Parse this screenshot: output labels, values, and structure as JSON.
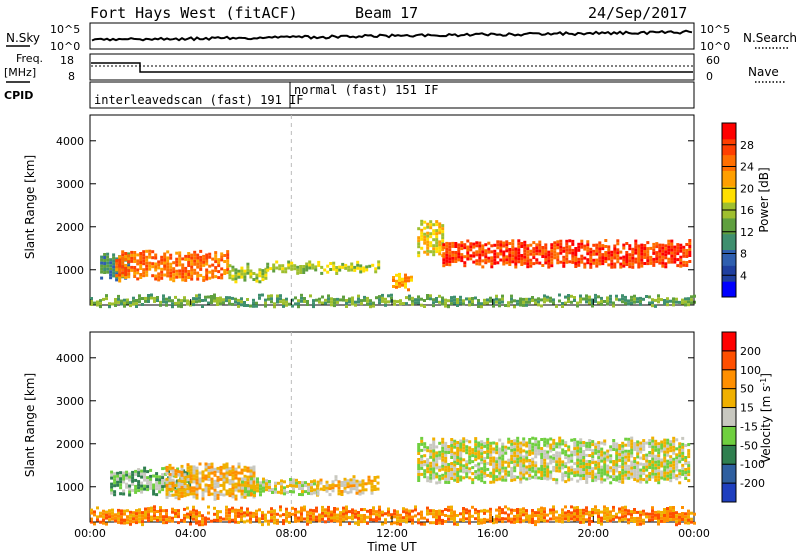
{
  "header": {
    "station": "Fort Hays West (fitACF)",
    "beam": "Beam 17",
    "date": "24/Sep/2017"
  },
  "noise_panel": {
    "left_label": "N.Sky",
    "right_label": "N.Search",
    "left_ticks": [
      "10^5",
      "10^0"
    ],
    "right_ticks": [
      "10^5",
      "10^0"
    ]
  },
  "freq_panel": {
    "left_label_1": "Freq.",
    "left_label_2": "[MHz]",
    "left_label_3": "CPID",
    "right_label": "Nave",
    "left_ticks": [
      "18",
      "8"
    ],
    "right_ticks": [
      "60",
      "0"
    ]
  },
  "cpid": {
    "left": "interleavedscan (fast) 191 IF",
    "right": "normal (fast) 151 IF"
  },
  "colors": {
    "power": [
      "#0000ff",
      "#1f3f9f",
      "#2f5faf",
      "#3f8f6f",
      "#5f9f3f",
      "#9fbf2f",
      "#ffdf00",
      "#ff9f00",
      "#ff6f00",
      "#ff3f00",
      "#ff0000"
    ],
    "velocity": [
      "#1f3fbf",
      "#2f5f9f",
      "#2f7f4f",
      "#6fcf3f",
      "#c8c8c0",
      "#f0b000",
      "#ff8f00",
      "#ff4f00",
      "#ff0000"
    ],
    "ground": "#bebeb4"
  },
  "chart_data": [
    {
      "type": "heatmap",
      "name": "power",
      "xlabel": "",
      "ylabel": "Slant Range [km]",
      "xlim": [
        0,
        24
      ],
      "ylim": [
        180,
        4600
      ],
      "yticks": [
        "4000",
        "3000",
        "2000",
        "1000"
      ],
      "colorbar": {
        "label": "Power [dB]",
        "ticks": [
          "28",
          "24",
          "20",
          "16",
          "12",
          "8",
          "4"
        ]
      },
      "regions": [
        {
          "t0": 0.4,
          "t1": 1.5,
          "r0": 850,
          "r1": 1350,
          "level": 3
        },
        {
          "t0": 1.0,
          "t1": 5.5,
          "r0": 780,
          "r1": 1400,
          "level": 8
        },
        {
          "t0": 5.5,
          "t1": 7.0,
          "r0": 800,
          "r1": 1100,
          "level": 5
        },
        {
          "t0": 7.0,
          "t1": 11.5,
          "r0": 950,
          "r1": 1150,
          "level": 5
        },
        {
          "t0": 12.0,
          "t1": 12.8,
          "r0": 600,
          "r1": 900,
          "level": 7
        },
        {
          "t0": 13.0,
          "t1": 14.0,
          "r0": 1400,
          "r1": 2100,
          "level": 6
        },
        {
          "t0": 14.0,
          "t1": 23.8,
          "r0": 1150,
          "r1": 1650,
          "level": 9
        },
        {
          "t0": 0.0,
          "t1": 24.0,
          "r0": 200,
          "r1": 380,
          "level": 4
        }
      ]
    },
    {
      "type": "heatmap",
      "name": "velocity",
      "xlabel": "Time UT",
      "ylabel": "Slant Range [km]",
      "xlim": [
        0,
        24
      ],
      "ylim": [
        180,
        4600
      ],
      "xticks": [
        "00:00",
        "04:00",
        "08:00",
        "12:00",
        "16:00",
        "20:00",
        "00:00"
      ],
      "yticks": [
        "4000",
        "3000",
        "2000",
        "1000"
      ],
      "colorbar": {
        "label": "Velocity [m s^-1]",
        "ticks": [
          "200",
          "100",
          "50",
          "15",
          "-15",
          "-50",
          "-100",
          "-200"
        ]
      },
      "regions": [
        {
          "t0": 0.8,
          "t1": 4.0,
          "r0": 850,
          "r1": 1400,
          "level": 3
        },
        {
          "t0": 3.0,
          "t1": 6.5,
          "r0": 780,
          "r1": 1500,
          "level": 5
        },
        {
          "t0": 6.0,
          "t1": 9.0,
          "r0": 850,
          "r1": 1150,
          "level": 4
        },
        {
          "t0": 9.0,
          "t1": 11.5,
          "r0": 900,
          "r1": 1200,
          "level": 5
        },
        {
          "t0": 13.0,
          "t1": 23.8,
          "r0": 1150,
          "r1": 2100,
          "level": 4
        },
        {
          "t0": 0.0,
          "t1": 24.0,
          "r0": 200,
          "r1": 500,
          "level": 6
        }
      ]
    }
  ]
}
